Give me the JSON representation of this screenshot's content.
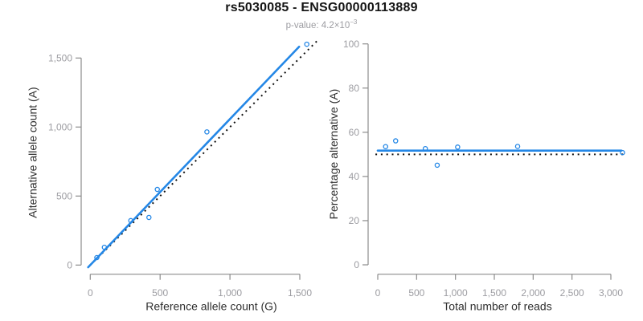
{
  "header": {
    "title": "rs5030085 - ENSG00000113889",
    "pvalue_label": "p-value: 4.2×10",
    "pvalue_exponent": "−3"
  },
  "colors": {
    "accent_blue": "#2487e6",
    "reference_black": "#111111",
    "axis_gray": "#8c8c8c",
    "tick_label_gray": "#9c9ca1",
    "axis_title_dark": "#2f2f2f"
  },
  "chart_data": [
    {
      "id": "allele-count-scatter",
      "type": "scatter",
      "xlabel": "Reference allele count (G)",
      "ylabel": "Alternative allele count (A)",
      "x_ticks": [
        0,
        500,
        1000,
        1500
      ],
      "y_ticks": [
        0,
        500,
        1000,
        1500
      ],
      "xlim": [
        0,
        1600
      ],
      "ylim": [
        0,
        1650
      ],
      "grid": false,
      "legend": null,
      "points": [
        [
          47,
          54
        ],
        [
          101,
          129
        ],
        [
          290,
          322
        ],
        [
          420,
          345
        ],
        [
          480,
          548
        ],
        [
          835,
          965
        ],
        [
          1550,
          1600
        ]
      ],
      "fit_line": {
        "kind": "regression",
        "slope": 1.058,
        "intercept": 0,
        "style": "solid",
        "color": "#2487e6"
      },
      "reference_line": {
        "kind": "identity",
        "slope": 1,
        "intercept": 0,
        "style": "dotted",
        "color": "#111111"
      }
    },
    {
      "id": "percentage-alternative-scatter",
      "type": "scatter",
      "xlabel": "Total number of reads",
      "ylabel": "Percentage alternative (A)",
      "x_ticks": [
        0,
        500,
        1000,
        1500,
        2000,
        2500,
        3000
      ],
      "y_ticks": [
        0,
        20,
        40,
        60,
        80,
        100
      ],
      "xlim": [
        0,
        3200
      ],
      "ylim": [
        0,
        100
      ],
      "grid": false,
      "legend": null,
      "points": [
        [
          101,
          53.5
        ],
        [
          230,
          56.1
        ],
        [
          612,
          52.6
        ],
        [
          765,
          45.1
        ],
        [
          1028,
          53.3
        ],
        [
          1800,
          53.6
        ],
        [
          3150,
          50.8
        ]
      ],
      "fit_line": {
        "kind": "mean",
        "value": 51.7,
        "style": "solid",
        "color": "#2487e6"
      },
      "reference_line": {
        "kind": "expected",
        "value": 50,
        "style": "dotted",
        "color": "#111111"
      }
    }
  ]
}
